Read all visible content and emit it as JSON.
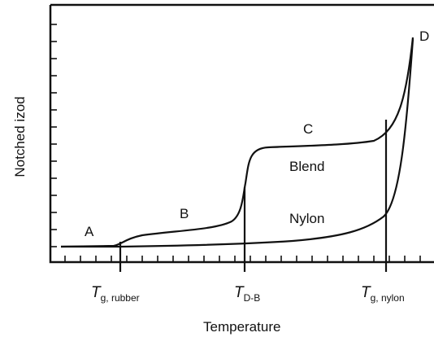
{
  "axes": {
    "y_label": "Notched izod",
    "x_label": "Temperature"
  },
  "regions": [
    {
      "label": "A"
    },
    {
      "label": "B"
    },
    {
      "label": "C"
    },
    {
      "label": "D"
    }
  ],
  "curves": [
    {
      "label": "Blend"
    },
    {
      "label": "Nylon"
    }
  ],
  "temperatures": [
    {
      "symbol": "T",
      "subscript": "g, rubber"
    },
    {
      "symbol": "T",
      "subscript": "D-B"
    },
    {
      "symbol": "T",
      "subscript": "g, nylon"
    }
  ]
}
